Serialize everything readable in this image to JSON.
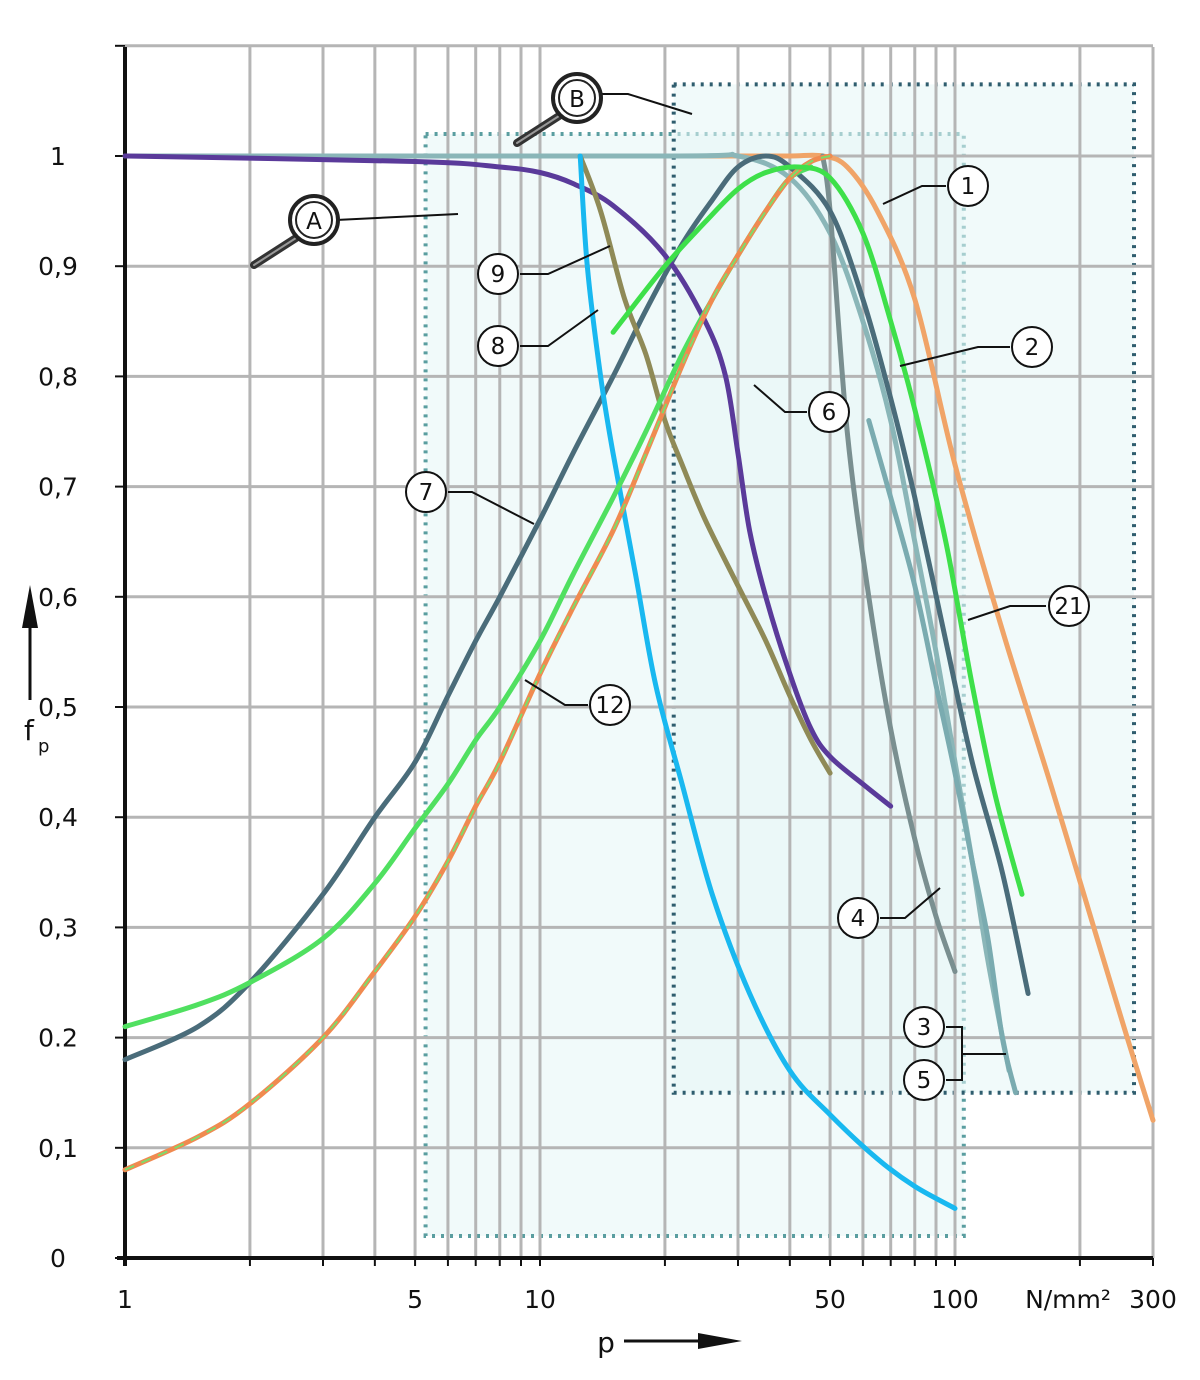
{
  "chart_data": {
    "type": "line",
    "x_scale": "log",
    "xlim": [
      1,
      300
    ],
    "ylim": [
      0,
      1.1
    ],
    "grid": true,
    "xlabel": "p",
    "xunit": "N/mm²",
    "ylabel": "f",
    "ylabel_subscript": "p",
    "x_ticks_labeled": [
      {
        "value": 1,
        "label": "1"
      },
      {
        "value": 5,
        "label": "5"
      },
      {
        "value": 10,
        "label": "10"
      },
      {
        "value": 50,
        "label": "50"
      },
      {
        "value": 100,
        "label": "100"
      },
      {
        "value": 300,
        "label": "300"
      }
    ],
    "x_unit_label": "N/mm²",
    "y_ticks": [
      {
        "value": 0,
        "label": "0"
      },
      {
        "value": 0.1,
        "label": "0,1"
      },
      {
        "value": 0.2,
        "label": "0.2"
      },
      {
        "value": 0.3,
        "label": "0,3"
      },
      {
        "value": 0.4,
        "label": "0,4"
      },
      {
        "value": 0.5,
        "label": "0,5"
      },
      {
        "value": 0.6,
        "label": "0,6"
      },
      {
        "value": 0.7,
        "label": "0,7"
      },
      {
        "value": 0.8,
        "label": "0,8"
      },
      {
        "value": 0.9,
        "label": "0,9"
      },
      {
        "value": 1.0,
        "label": "1"
      }
    ],
    "regions": [
      {
        "name": "A",
        "x_range": [
          5.3,
          105
        ],
        "y_range": [
          0.02,
          1.02
        ],
        "color": "#5a9ea0"
      },
      {
        "name": "B",
        "x_range": [
          21,
          270
        ],
        "y_range": [
          0.15,
          1.065
        ],
        "color": "#2f5d6e"
      }
    ],
    "series": [
      {
        "name": "1",
        "color": "#f0a468",
        "points": [
          [
            1,
            1
          ],
          [
            10,
            1
          ],
          [
            20,
            1
          ],
          [
            30,
            1
          ],
          [
            40,
            1
          ],
          [
            48,
            1
          ],
          [
            55,
            0.99
          ],
          [
            65,
            0.95
          ],
          [
            80,
            0.87
          ],
          [
            100,
            0.72
          ],
          [
            130,
            0.57
          ],
          [
            170,
            0.43
          ],
          [
            220,
            0.29
          ],
          [
            260,
            0.2
          ],
          [
            300,
            0.125
          ]
        ]
      },
      {
        "name": "2",
        "color": "#3ee04a",
        "points": [
          [
            15,
            0.84
          ],
          [
            20,
            0.9
          ],
          [
            25,
            0.94
          ],
          [
            30,
            0.97
          ],
          [
            35,
            0.985
          ],
          [
            42,
            0.99
          ],
          [
            50,
            0.98
          ],
          [
            60,
            0.93
          ],
          [
            70,
            0.85
          ],
          [
            80,
            0.77
          ],
          [
            95,
            0.65
          ],
          [
            110,
            0.52
          ],
          [
            125,
            0.42
          ],
          [
            145,
            0.33
          ]
        ]
      },
      {
        "name": "3",
        "color": "#8ab6b8",
        "points": [
          [
            1,
            1
          ],
          [
            20,
            1
          ],
          [
            30,
            1
          ],
          [
            40,
            0.98
          ],
          [
            50,
            0.93
          ],
          [
            60,
            0.85
          ],
          [
            70,
            0.76
          ],
          [
            80,
            0.65
          ],
          [
            90,
            0.55
          ],
          [
            100,
            0.45
          ],
          [
            110,
            0.36
          ],
          [
            120,
            0.27
          ],
          [
            135,
            0.17
          ]
        ]
      },
      {
        "name": "4",
        "color": "#7a8f90",
        "points": [
          [
            48,
            1
          ],
          [
            50,
            0.95
          ],
          [
            55,
            0.75
          ],
          [
            62,
            0.6
          ],
          [
            70,
            0.48
          ],
          [
            80,
            0.38
          ],
          [
            90,
            0.31
          ],
          [
            100,
            0.26
          ]
        ]
      },
      {
        "name": "5",
        "color": "#7aabb0",
        "points": [
          [
            62,
            0.76
          ],
          [
            70,
            0.69
          ],
          [
            80,
            0.61
          ],
          [
            90,
            0.52
          ],
          [
            100,
            0.44
          ],
          [
            110,
            0.36
          ],
          [
            120,
            0.29
          ],
          [
            130,
            0.2
          ],
          [
            140,
            0.15
          ]
        ]
      },
      {
        "name": "6",
        "color": "#5a3a9a",
        "points": [
          [
            1,
            1
          ],
          [
            5,
            0.995
          ],
          [
            8,
            0.99
          ],
          [
            10,
            0.985
          ],
          [
            12,
            0.975
          ],
          [
            15,
            0.955
          ],
          [
            20,
            0.91
          ],
          [
            25,
            0.85
          ],
          [
            28,
            0.8
          ],
          [
            30,
            0.73
          ],
          [
            32,
            0.66
          ],
          [
            35,
            0.6
          ],
          [
            40,
            0.53
          ],
          [
            45,
            0.48
          ],
          [
            50,
            0.455
          ],
          [
            60,
            0.43
          ],
          [
            70,
            0.41
          ]
        ]
      },
      {
        "name": "7",
        "color": "#4a6c7a",
        "points": [
          [
            1,
            0.18
          ],
          [
            1.5,
            0.21
          ],
          [
            2,
            0.25
          ],
          [
            3,
            0.33
          ],
          [
            4,
            0.4
          ],
          [
            5,
            0.45
          ],
          [
            6,
            0.51
          ],
          [
            7,
            0.56
          ],
          [
            8,
            0.6
          ],
          [
            10,
            0.67
          ],
          [
            12,
            0.73
          ],
          [
            15,
            0.8
          ],
          [
            18,
            0.86
          ],
          [
            22,
            0.92
          ],
          [
            26,
            0.96
          ],
          [
            30,
            0.99
          ],
          [
            35,
            1
          ],
          [
            40,
            0.99
          ],
          [
            50,
            0.95
          ],
          [
            60,
            0.87
          ],
          [
            70,
            0.78
          ],
          [
            80,
            0.69
          ],
          [
            95,
            0.56
          ],
          [
            110,
            0.45
          ],
          [
            130,
            0.35
          ],
          [
            150,
            0.24
          ]
        ]
      },
      {
        "name": "8",
        "color": "#19b8f0",
        "points": [
          [
            12.5,
            1
          ],
          [
            13,
            0.9
          ],
          [
            14,
            0.8
          ],
          [
            15,
            0.73
          ],
          [
            17,
            0.62
          ],
          [
            19,
            0.52
          ],
          [
            22,
            0.43
          ],
          [
            26,
            0.33
          ],
          [
            32,
            0.24
          ],
          [
            40,
            0.17
          ],
          [
            50,
            0.13
          ],
          [
            65,
            0.09
          ],
          [
            80,
            0.065
          ],
          [
            100,
            0.045
          ]
        ]
      },
      {
        "name": "9",
        "color": "#8f8a57",
        "points": [
          [
            12.5,
            1
          ],
          [
            14,
            0.95
          ],
          [
            16,
            0.87
          ],
          [
            18,
            0.82
          ],
          [
            20,
            0.76
          ],
          [
            22,
            0.72
          ],
          [
            25,
            0.67
          ],
          [
            30,
            0.61
          ],
          [
            35,
            0.56
          ],
          [
            40,
            0.51
          ],
          [
            45,
            0.47
          ],
          [
            50,
            0.44
          ]
        ]
      },
      {
        "name": "12",
        "color": "#f08a50",
        "points": [
          [
            1,
            0.08
          ],
          [
            1.5,
            0.11
          ],
          [
            2,
            0.14
          ],
          [
            3,
            0.2
          ],
          [
            4,
            0.26
          ],
          [
            5,
            0.31
          ],
          [
            6,
            0.36
          ],
          [
            7,
            0.41
          ],
          [
            8,
            0.45
          ],
          [
            10,
            0.53
          ],
          [
            12,
            0.59
          ],
          [
            15,
            0.66
          ],
          [
            18,
            0.73
          ],
          [
            22,
            0.81
          ],
          [
            26,
            0.87
          ],
          [
            30,
            0.91
          ],
          [
            35,
            0.95
          ],
          [
            40,
            0.98
          ],
          [
            45,
            0.995
          ],
          [
            50,
            1
          ]
        ]
      },
      {
        "name": "21",
        "color": "#50e060",
        "points": [
          [
            1,
            0.21
          ],
          [
            1.5,
            0.23
          ],
          [
            2,
            0.25
          ],
          [
            3,
            0.29
          ],
          [
            4,
            0.34
          ],
          [
            5,
            0.39
          ],
          [
            6,
            0.43
          ],
          [
            7,
            0.47
          ],
          [
            8,
            0.5
          ],
          [
            10,
            0.56
          ],
          [
            12,
            0.62
          ],
          [
            15,
            0.69
          ],
          [
            18,
            0.75
          ],
          [
            22,
            0.82
          ],
          [
            26,
            0.87
          ],
          [
            30,
            0.91
          ],
          [
            35,
            0.95
          ],
          [
            40,
            0.98
          ],
          [
            45,
            0.99
          ]
        ]
      }
    ],
    "callouts": [
      {
        "label": "1"
      },
      {
        "label": "2"
      },
      {
        "label": "21"
      },
      {
        "label": "6"
      },
      {
        "label": "7"
      },
      {
        "label": "8"
      },
      {
        "label": "9"
      },
      {
        "label": "12"
      },
      {
        "label": "4"
      },
      {
        "label": "3"
      },
      {
        "label": "5"
      },
      {
        "label": "A"
      },
      {
        "label": "B"
      }
    ]
  }
}
